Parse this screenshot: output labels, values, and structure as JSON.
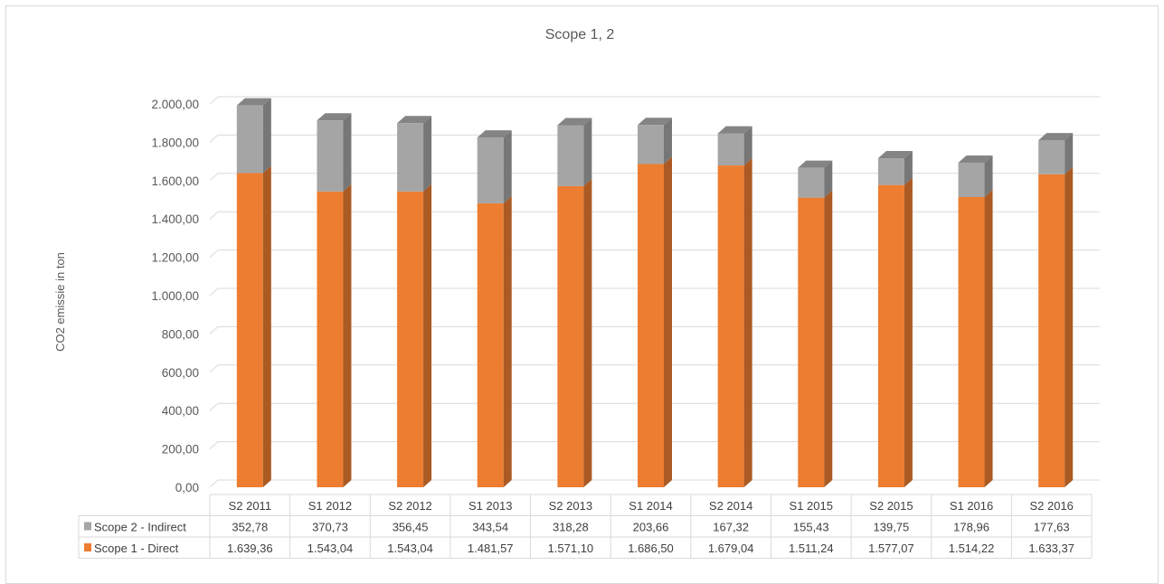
{
  "chart_data": {
    "type": "bar",
    "stacked": true,
    "three_d": true,
    "title": "Scope 1, 2",
    "xlabel": "",
    "ylabel": "CO2 emissie in ton",
    "ylim": [
      0,
      2000
    ],
    "ytick_step": 200,
    "yticks": [
      "0,00",
      "200,00",
      "400,00",
      "600,00",
      "800,00",
      "1.000,00",
      "1.200,00",
      "1.400,00",
      "1.600,00",
      "1.800,00",
      "2.000,00"
    ],
    "grid": true,
    "legend_placement": "data-table",
    "categories": [
      "S2 2011",
      "S1 2012",
      "S2 2012",
      "S1 2013",
      "S2 2013",
      "S1 2014",
      "S2 2014",
      "S1 2015",
      "S2 2015",
      "S1 2016",
      "S2 2016"
    ],
    "series": [
      {
        "name": "Scope 2 - Indirect",
        "color": "#a5a5a5",
        "values": [
          352.78,
          370.73,
          356.45,
          343.54,
          318.28,
          203.66,
          167.32,
          155.43,
          139.75,
          178.96,
          177.63
        ],
        "labels": [
          "352,78",
          "370,73",
          "356,45",
          "343,54",
          "318,28",
          "203,66",
          "167,32",
          "155,43",
          "139,75",
          "178,96",
          "177,63"
        ]
      },
      {
        "name": "Scope 1 - Direct",
        "color": "#ed7d31",
        "values": [
          1639.36,
          1543.04,
          1543.04,
          1481.57,
          1571.1,
          1686.5,
          1679.04,
          1511.24,
          1577.07,
          1514.22,
          1633.37
        ],
        "labels": [
          "1.639,36",
          "1.543,04",
          "1.543,04",
          "1.481,57",
          "1.571,10",
          "1.686,50",
          "1.679,04",
          "1.511,24",
          "1.577,07",
          "1.514,22",
          "1.633,37"
        ]
      }
    ]
  }
}
